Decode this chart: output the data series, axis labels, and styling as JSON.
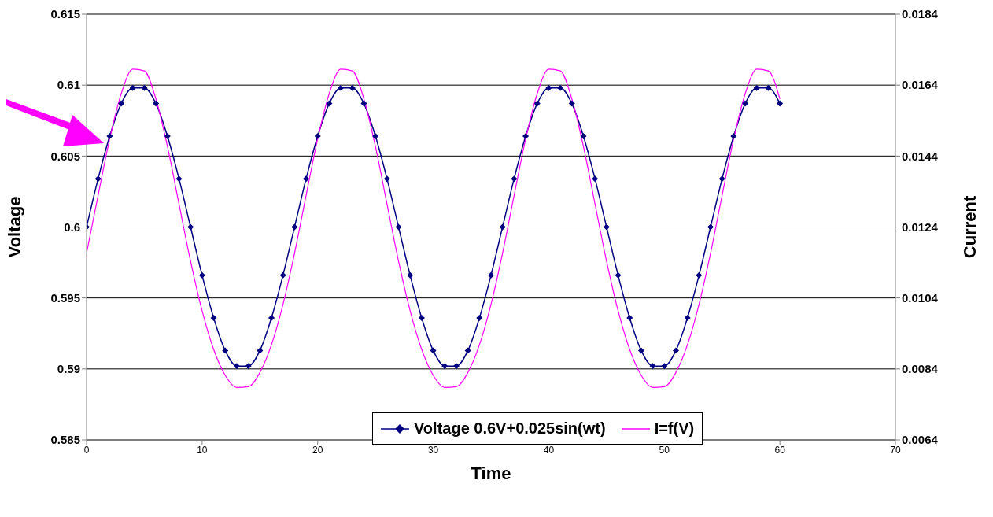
{
  "chart_data": {
    "type": "line",
    "xlabel": "Time",
    "ylabel": "Voltage",
    "y2label": "Current",
    "x": [
      0,
      1,
      2,
      3,
      4,
      5,
      6,
      7,
      8,
      9,
      10,
      11,
      12,
      13,
      14,
      15,
      16,
      17,
      18,
      19,
      20,
      21,
      22,
      23,
      24,
      25,
      26,
      27,
      28,
      29,
      30,
      31,
      32,
      33,
      34,
      35,
      36,
      37,
      38,
      39,
      40,
      41,
      42,
      43,
      44,
      45,
      46,
      47,
      48,
      49,
      50,
      51,
      52,
      53,
      54,
      55,
      56,
      57,
      58,
      59,
      60
    ],
    "series": [
      {
        "name": "Voltage 0.6V+0.025sin(wt)",
        "color": "#000080",
        "marker": "diamond",
        "values": [
          0.6,
          0.6034,
          0.6064,
          0.6087,
          0.6098,
          0.6098,
          0.6087,
          0.6064,
          0.6034,
          0.6,
          0.5966,
          0.5936,
          0.5913,
          0.5902,
          0.5902,
          0.5913,
          0.5936,
          0.5966,
          0.6,
          0.6034,
          0.6064,
          0.6087,
          0.6098,
          0.6098,
          0.6087,
          0.6064,
          0.6034,
          0.6,
          0.5966,
          0.5936,
          0.5913,
          0.5902,
          0.5902,
          0.5913,
          0.5936,
          0.5966,
          0.6,
          0.6034,
          0.6064,
          0.6087,
          0.6098,
          0.6098,
          0.6087,
          0.6064,
          0.6034,
          0.6,
          0.5966,
          0.5936,
          0.5913,
          0.5902,
          0.5902,
          0.5913,
          0.5936,
          0.5966,
          0.6,
          0.6034,
          0.6064,
          0.6087,
          0.6098,
          0.6098,
          0.6087
        ]
      },
      {
        "name": "I=f(V)",
        "color": "#ff00ff",
        "marker": "none",
        "axis": "y2",
        "values": [
          0.01166,
          0.01329,
          0.01488,
          0.01616,
          0.01685,
          0.0168,
          0.01601,
          0.01467,
          0.01305,
          0.01144,
          0.01004,
          0.00895,
          0.00822,
          0.00788,
          0.0079,
          0.0083,
          0.00908,
          0.01022,
          0.01166,
          0.01329,
          0.01488,
          0.01616,
          0.01685,
          0.0168,
          0.01601,
          0.01467,
          0.01305,
          0.01144,
          0.01004,
          0.00895,
          0.00822,
          0.00788,
          0.0079,
          0.0083,
          0.00908,
          0.01022,
          0.01166,
          0.01329,
          0.01488,
          0.01616,
          0.01685,
          0.0168,
          0.01601,
          0.01467,
          0.01305,
          0.01144,
          0.01004,
          0.00895,
          0.00822,
          0.00788,
          0.0079,
          0.0083,
          0.00908,
          0.01022,
          0.01166,
          0.01329,
          0.01488,
          0.01616,
          0.01685,
          0.0168,
          0.01601
        ]
      }
    ],
    "xlim": [
      0,
      70
    ],
    "xticks": [
      0,
      10,
      20,
      30,
      40,
      50,
      60,
      70
    ],
    "ylim": [
      0.585,
      0.615
    ],
    "yticks": [
      0.585,
      0.59,
      0.595,
      0.6,
      0.605,
      0.61,
      0.615
    ],
    "y2lim": [
      0.0064,
      0.0184
    ],
    "y2ticks": [
      0.0064,
      0.0084,
      0.0104,
      0.0124,
      0.0144,
      0.0164,
      0.0184
    ],
    "grid": "y",
    "legend": "bottom"
  }
}
